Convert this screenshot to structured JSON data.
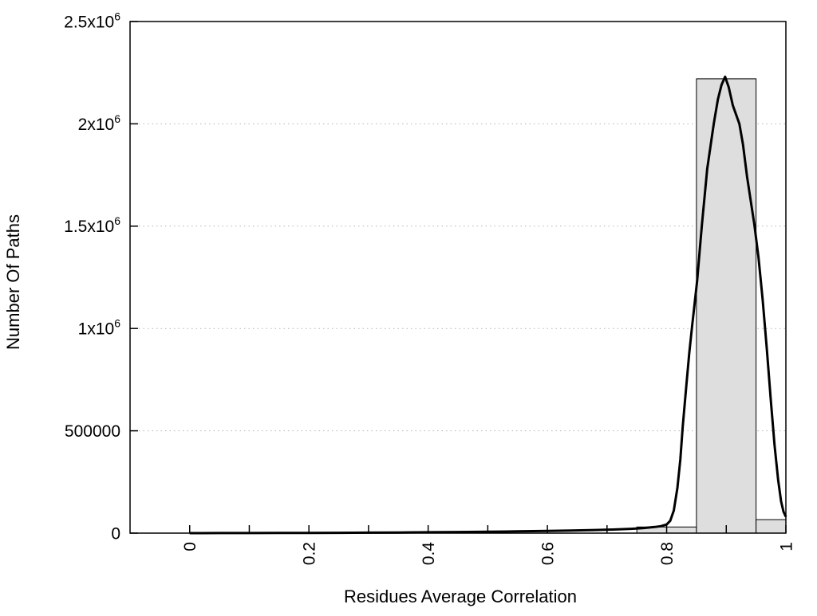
{
  "chart_data": {
    "type": "bar",
    "subtype": "histogram-with-fit-curve",
    "title": "",
    "xlabel": "Residues Average Correlation",
    "ylabel": "Number Of Paths",
    "xlim": [
      -0.1,
      1.0
    ],
    "ylim": [
      0,
      2500000
    ],
    "legend": "none",
    "grid": {
      "horizontal": true,
      "vertical": false,
      "style": "dotted",
      "color": "#b3b3b3"
    },
    "x_ticks": {
      "rotation": -90,
      "minor_step": 0.1,
      "minor_range": [
        0,
        1
      ],
      "labels": [
        {
          "value": 0,
          "label": "0"
        },
        {
          "value": 0.2,
          "label": "0.2"
        },
        {
          "value": 0.4,
          "label": "0.4"
        },
        {
          "value": 0.6,
          "label": "0.6"
        },
        {
          "value": 0.8,
          "label": "0.8"
        },
        {
          "value": 1,
          "label": "1"
        }
      ]
    },
    "y_ticks": [
      {
        "value": 0,
        "label": "0"
      },
      {
        "value": 500000,
        "label": "500000"
      },
      {
        "value": 1000000,
        "label": "1x10",
        "exp": "6"
      },
      {
        "value": 1500000,
        "label": "1.5x10",
        "exp": "6"
      },
      {
        "value": 2000000,
        "label": "2x10",
        "exp": "6"
      },
      {
        "value": 2500000,
        "label": "2.5x10",
        "exp": "6"
      }
    ],
    "histogram": {
      "fill": "#dedede",
      "stroke": "#000000",
      "bin_width": 0.1,
      "bars": [
        {
          "center": 0.8,
          "range": [
            0.75,
            0.85
          ],
          "count": 30000
        },
        {
          "center": 0.9,
          "range": [
            0.85,
            0.95
          ],
          "count": 2220000
        },
        {
          "center": 1.0,
          "range": [
            0.95,
            1.0
          ],
          "count": 66000
        }
      ]
    },
    "fit_curve": {
      "color": "#000000",
      "stroke_width": 3,
      "peak": {
        "x": 0.898,
        "y": 2230000
      },
      "points": [
        [
          0,
          0
        ],
        [
          0.05,
          200
        ],
        [
          0.1,
          400
        ],
        [
          0.15,
          700
        ],
        [
          0.2,
          1100
        ],
        [
          0.25,
          1600
        ],
        [
          0.3,
          2300
        ],
        [
          0.35,
          3100
        ],
        [
          0.4,
          4100
        ],
        [
          0.45,
          5300
        ],
        [
          0.5,
          6700
        ],
        [
          0.55,
          8400
        ],
        [
          0.6,
          10500
        ],
        [
          0.64,
          12500
        ],
        [
          0.68,
          15000
        ],
        [
          0.71,
          17500
        ],
        [
          0.74,
          21000
        ],
        [
          0.76,
          24500
        ],
        [
          0.78,
          30000
        ],
        [
          0.79,
          34000
        ],
        [
          0.8,
          42000
        ],
        [
          0.806,
          60000
        ],
        [
          0.812,
          110000
        ],
        [
          0.818,
          220000
        ],
        [
          0.823,
          360000
        ],
        [
          0.827,
          520000
        ],
        [
          0.833,
          720000
        ],
        [
          0.838,
          880000
        ],
        [
          0.843,
          1020000
        ],
        [
          0.851,
          1230000
        ],
        [
          0.859,
          1500000
        ],
        [
          0.868,
          1780000
        ],
        [
          0.879,
          2000000
        ],
        [
          0.886,
          2120000
        ],
        [
          0.892,
          2190000
        ],
        [
          0.898,
          2230000
        ],
        [
          0.904,
          2180000
        ],
        [
          0.911,
          2090000
        ],
        [
          0.922,
          2000000
        ],
        [
          0.928,
          1900000
        ],
        [
          0.935,
          1740000
        ],
        [
          0.947,
          1510000
        ],
        [
          0.954,
          1350000
        ],
        [
          0.961,
          1140000
        ],
        [
          0.968,
          900000
        ],
        [
          0.975,
          640000
        ],
        [
          0.981,
          430000
        ],
        [
          0.987,
          260000
        ],
        [
          0.992,
          155000
        ],
        [
          0.996,
          105000
        ],
        [
          1,
          80000
        ]
      ]
    }
  }
}
